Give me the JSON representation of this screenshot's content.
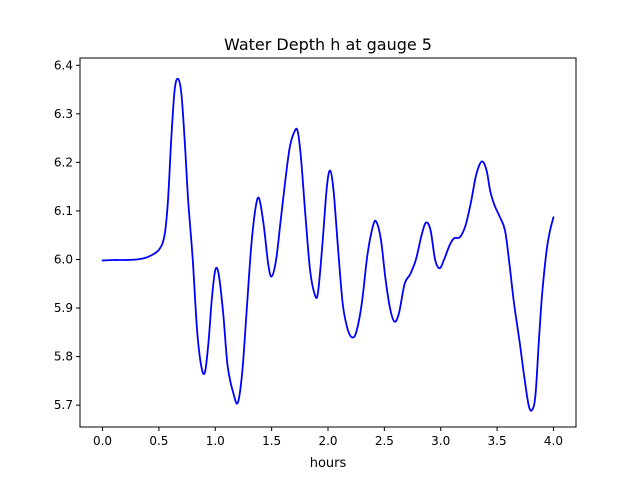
{
  "chart_data": {
    "type": "line",
    "title": "Water Depth h at gauge 5",
    "xlabel": "hours",
    "ylabel": "",
    "xlim": [
      -0.2,
      4.2
    ],
    "ylim": [
      5.655,
      6.415
    ],
    "xticks": [
      0.0,
      0.5,
      1.0,
      1.5,
      2.0,
      2.5,
      3.0,
      3.5,
      4.0
    ],
    "xtick_labels": [
      "0.0",
      "0.5",
      "1.0",
      "1.5",
      "2.0",
      "2.5",
      "3.0",
      "3.5",
      "4.0"
    ],
    "yticks": [
      5.7,
      5.8,
      5.9,
      6.0,
      6.1,
      6.2,
      6.3,
      6.4
    ],
    "ytick_labels": [
      "5.7",
      "5.8",
      "5.9",
      "6.0",
      "6.1",
      "6.2",
      "6.3",
      "6.4"
    ],
    "grid": false,
    "legend": "none",
    "series": [
      {
        "color": "#0000ff",
        "points": [
          [
            0.0,
            5.998
          ],
          [
            0.1,
            5.999
          ],
          [
            0.2,
            5.999
          ],
          [
            0.3,
            6.0
          ],
          [
            0.4,
            6.005
          ],
          [
            0.5,
            6.02
          ],
          [
            0.55,
            6.05
          ],
          [
            0.58,
            6.12
          ],
          [
            0.61,
            6.25
          ],
          [
            0.64,
            6.35
          ],
          [
            0.67,
            6.372
          ],
          [
            0.7,
            6.34
          ],
          [
            0.73,
            6.24
          ],
          [
            0.76,
            6.12
          ],
          [
            0.8,
            6.0
          ],
          [
            0.84,
            5.85
          ],
          [
            0.88,
            5.775
          ],
          [
            0.91,
            5.77
          ],
          [
            0.94,
            5.83
          ],
          [
            0.97,
            5.92
          ],
          [
            1.0,
            5.978
          ],
          [
            1.03,
            5.97
          ],
          [
            1.07,
            5.89
          ],
          [
            1.11,
            5.78
          ],
          [
            1.16,
            5.725
          ],
          [
            1.2,
            5.705
          ],
          [
            1.24,
            5.77
          ],
          [
            1.28,
            5.9
          ],
          [
            1.32,
            6.03
          ],
          [
            1.36,
            6.11
          ],
          [
            1.39,
            6.125
          ],
          [
            1.43,
            6.07
          ],
          [
            1.47,
            5.99
          ],
          [
            1.5,
            5.965
          ],
          [
            1.54,
            6.0
          ],
          [
            1.58,
            6.08
          ],
          [
            1.62,
            6.16
          ],
          [
            1.66,
            6.23
          ],
          [
            1.7,
            6.262
          ],
          [
            1.73,
            6.265
          ],
          [
            1.76,
            6.21
          ],
          [
            1.8,
            6.09
          ],
          [
            1.84,
            5.98
          ],
          [
            1.88,
            5.93
          ],
          [
            1.91,
            5.93
          ],
          [
            1.95,
            6.03
          ],
          [
            1.99,
            6.15
          ],
          [
            2.02,
            6.183
          ],
          [
            2.05,
            6.14
          ],
          [
            2.09,
            6.02
          ],
          [
            2.13,
            5.91
          ],
          [
            2.17,
            5.86
          ],
          [
            2.21,
            5.84
          ],
          [
            2.25,
            5.85
          ],
          [
            2.3,
            5.91
          ],
          [
            2.35,
            6.01
          ],
          [
            2.4,
            6.07
          ],
          [
            2.43,
            6.077
          ],
          [
            2.47,
            6.04
          ],
          [
            2.51,
            5.96
          ],
          [
            2.55,
            5.9
          ],
          [
            2.59,
            5.872
          ],
          [
            2.63,
            5.89
          ],
          [
            2.68,
            5.95
          ],
          [
            2.73,
            5.97
          ],
          [
            2.78,
            6.0
          ],
          [
            2.83,
            6.05
          ],
          [
            2.87,
            6.076
          ],
          [
            2.91,
            6.06
          ],
          [
            2.95,
            6.0
          ],
          [
            2.99,
            5.982
          ],
          [
            3.03,
            6.0
          ],
          [
            3.08,
            6.03
          ],
          [
            3.12,
            6.044
          ],
          [
            3.17,
            6.046
          ],
          [
            3.22,
            6.07
          ],
          [
            3.27,
            6.12
          ],
          [
            3.31,
            6.17
          ],
          [
            3.35,
            6.198
          ],
          [
            3.38,
            6.2
          ],
          [
            3.41,
            6.18
          ],
          [
            3.44,
            6.14
          ],
          [
            3.48,
            6.11
          ],
          [
            3.52,
            6.09
          ],
          [
            3.57,
            6.06
          ],
          [
            3.61,
            5.99
          ],
          [
            3.65,
            5.91
          ],
          [
            3.7,
            5.83
          ],
          [
            3.74,
            5.76
          ],
          [
            3.78,
            5.7
          ],
          [
            3.81,
            5.69
          ],
          [
            3.84,
            5.72
          ],
          [
            3.87,
            5.83
          ],
          [
            3.9,
            5.93
          ],
          [
            3.94,
            6.02
          ],
          [
            3.97,
            6.06
          ],
          [
            4.0,
            6.087
          ]
        ]
      }
    ]
  }
}
